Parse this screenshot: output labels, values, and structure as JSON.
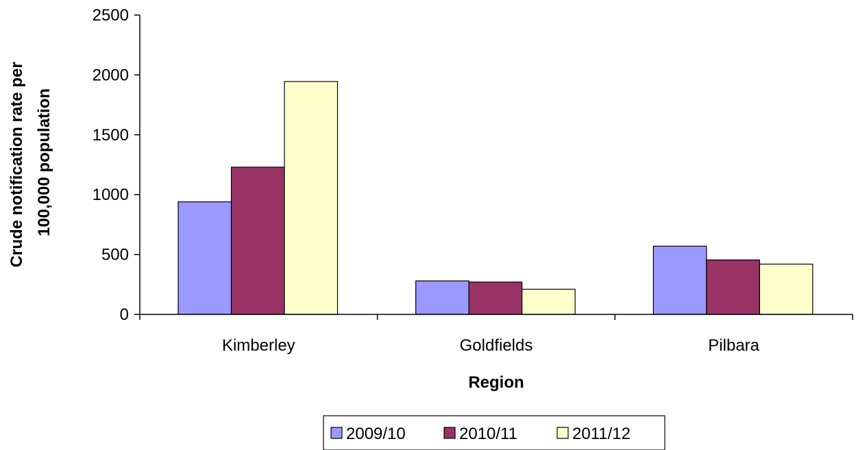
{
  "chart_data": {
    "type": "bar",
    "title": "",
    "xlabel": "Region",
    "ylabel_lines": [
      "Crude notification rate per",
      "100,000 population"
    ],
    "categories": [
      "Kimberley",
      "Goldfields",
      "Pilbara"
    ],
    "series": [
      {
        "name": "2009/10",
        "color": "#9999ff",
        "values": [
          940,
          280,
          570
        ]
      },
      {
        "name": "2010/11",
        "color": "#993366",
        "values": [
          1230,
          270,
          455
        ]
      },
      {
        "name": "2011/12",
        "color": "#ffffcc",
        "values": [
          1945,
          210,
          420
        ]
      }
    ],
    "ylim": [
      0,
      2500
    ],
    "yticks": [
      0,
      500,
      1000,
      1500,
      2000,
      2500
    ],
    "grid": false,
    "legend_position": "bottom"
  }
}
